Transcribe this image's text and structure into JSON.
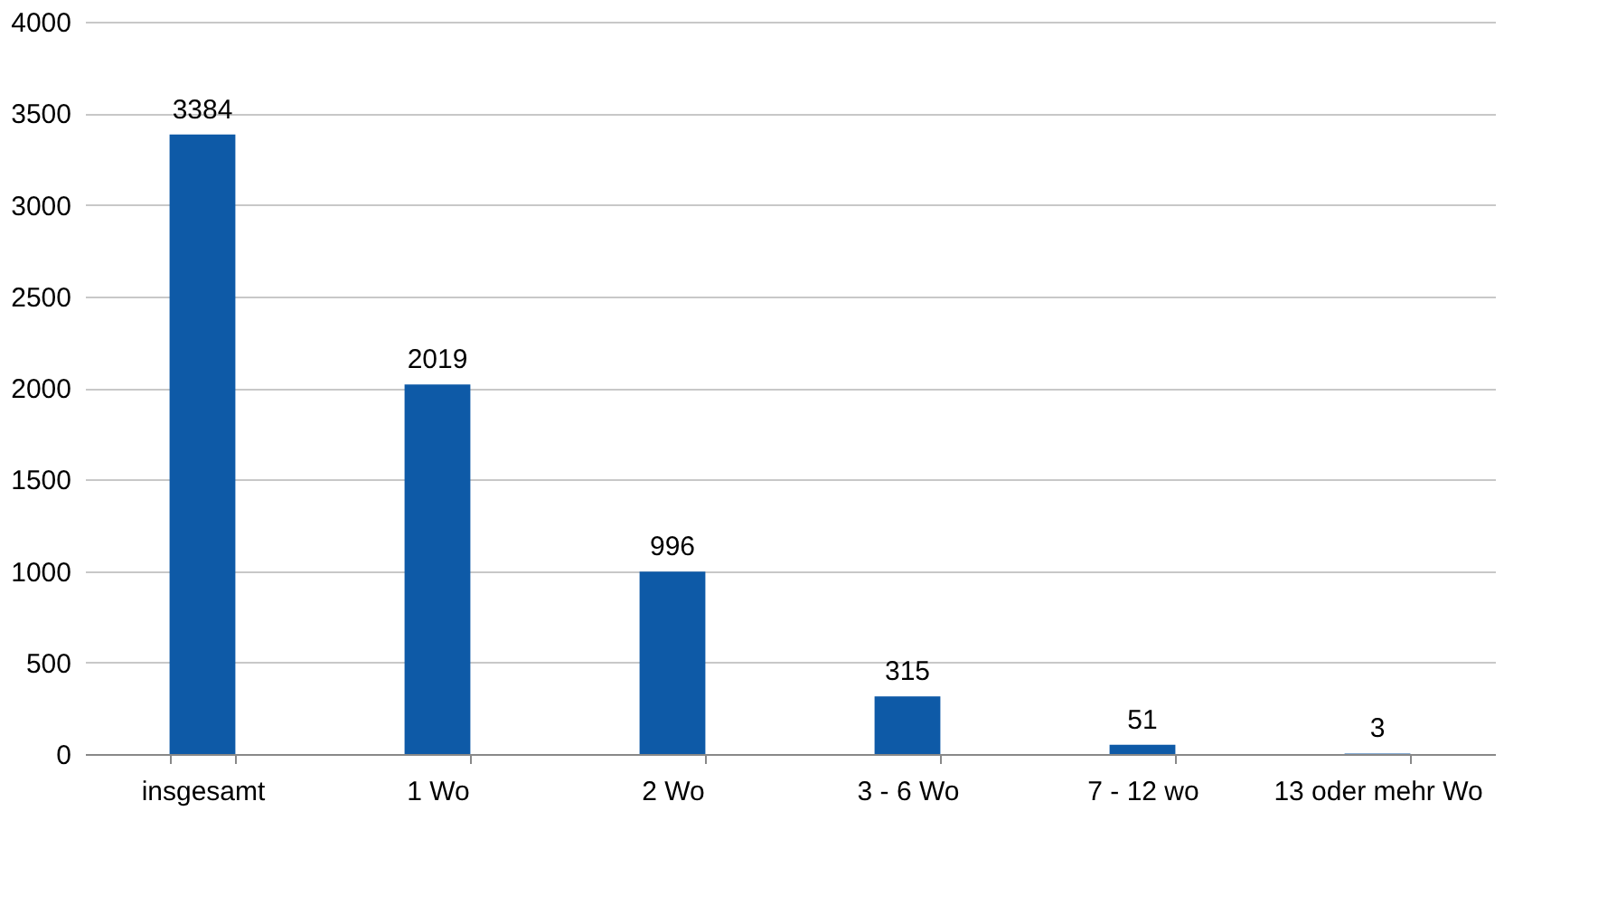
{
  "chart_data": {
    "type": "bar",
    "categories": [
      "insgesamt",
      "1 Wo",
      "2 Wo",
      "3 - 6 Wo",
      "7 - 12 wo",
      "13 oder mehr Wo"
    ],
    "values": [
      3384,
      2019,
      996,
      315,
      51,
      3
    ],
    "color": "#0e5aa7",
    "ylim": [
      0,
      4000
    ],
    "yticks": [
      0,
      500,
      1000,
      1500,
      2000,
      2500,
      3000,
      3500,
      4000
    ],
    "grid": "y",
    "data_labels": true
  }
}
